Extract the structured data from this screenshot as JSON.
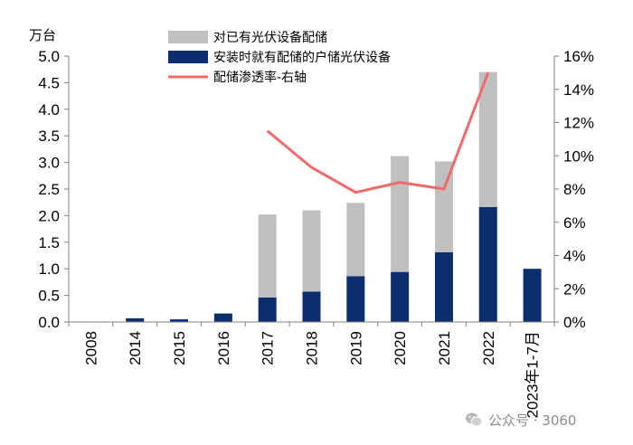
{
  "chart_data": {
    "type": "bar+line",
    "left_unit": "万台",
    "categories": [
      "2008",
      "2014",
      "2015",
      "2016",
      "2017",
      "2018",
      "2019",
      "2020",
      "2021",
      "2022",
      "2023年1-7月"
    ],
    "series": [
      {
        "name": "对已有光伏设备配储",
        "kind": "stacked-bar",
        "axis": "left",
        "color": "#c0c0c0",
        "total_values": [
          0,
          0.07,
          0.05,
          0.16,
          2.02,
          2.1,
          2.24,
          3.12,
          3.02,
          4.7,
          1.0
        ]
      },
      {
        "name": "安装时就有配储的户储光伏设备",
        "kind": "bar",
        "axis": "left",
        "color": "#0d2e6e",
        "values": [
          0,
          0.07,
          0.05,
          0.16,
          0.46,
          0.57,
          0.86,
          0.94,
          1.31,
          2.16,
          1.0
        ]
      },
      {
        "name": "配储渗透率-右轴",
        "kind": "line",
        "axis": "right",
        "color": "#f06a6a",
        "values": [
          null,
          null,
          null,
          null,
          0.115,
          0.093,
          0.078,
          0.084,
          0.08,
          0.15,
          null
        ]
      }
    ],
    "left_axis": {
      "min": 0,
      "max": 5.0,
      "step": 0.5,
      "tick_labels": [
        "0.0",
        "0.5",
        "1.0",
        "1.5",
        "2.0",
        "2.5",
        "3.0",
        "3.5",
        "4.0",
        "4.5",
        "5.0"
      ]
    },
    "right_axis": {
      "min": 0,
      "max": 0.16,
      "step": 0.02,
      "tick_labels": [
        "0%",
        "2%",
        "4%",
        "6%",
        "8%",
        "10%",
        "12%",
        "14%",
        "16%"
      ]
    },
    "legend_position": "top-center"
  },
  "watermark": {
    "text": "公众号 · 3060"
  }
}
